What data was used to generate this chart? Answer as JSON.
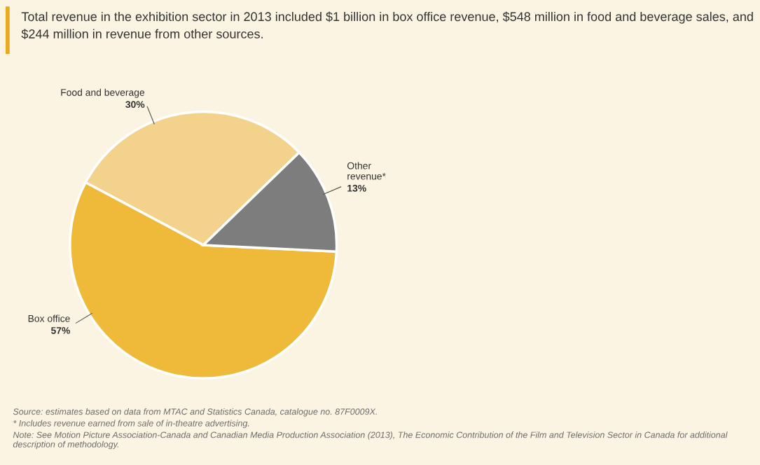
{
  "chart_data": {
    "type": "pie",
    "title": "Total revenue in the exhibition sector in 2013 included $1 billion in box office revenue, $548 million in food and beverage sales, and $244 million in revenue from other sources.",
    "categories": [
      "Food and beverage",
      "Box office",
      "Other\nrevenue*"
    ],
    "values": [
      30,
      57,
      13
    ],
    "value_labels": [
      "30%",
      "57%",
      "13%"
    ],
    "colors": [
      "#f3d38c",
      "#efba3a",
      "#7d7d7d"
    ],
    "annotations": [
      "Source: estimates based on data from MTAC and Statistics Canada, catalogue no. 87F0009X.",
      "* Includes revenue earned from sale of in-theatre advertising.",
      "Note: See Motion Picture Association-Canada and Canadian Media Production Association (2013), The Economic Contribution of the Film and Television Sector in Canada for additional description of methodology."
    ]
  }
}
